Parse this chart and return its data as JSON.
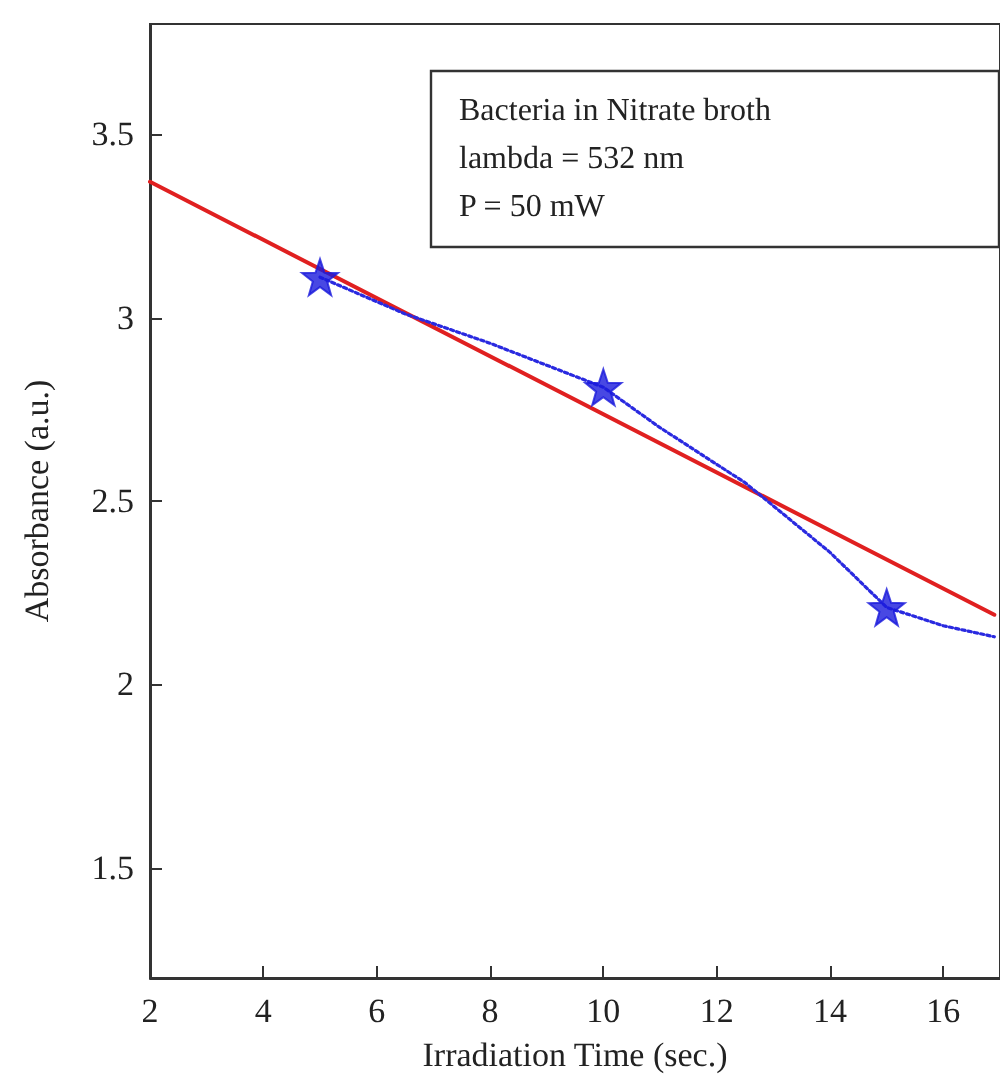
{
  "chart_data": {
    "type": "scatter",
    "xlabel": "Irradiation Time (sec.)",
    "ylabel": "Absorbance (a.u.)",
    "xlim": [
      2,
      17
    ],
    "xticks": [
      2,
      4,
      6,
      8,
      10,
      12,
      14,
      16
    ],
    "ylim": [
      1.2,
      3.8
    ],
    "yticks": [
      1.5,
      2,
      2.5,
      3,
      3.5
    ],
    "grid": false,
    "annotations": [
      "Bacteria in Nitrate broth\nlambda = 532 nm\nP = 50 mW"
    ],
    "series": [
      {
        "type": "line",
        "color": "#e02020",
        "line_style": "solid",
        "marker": "none",
        "x": [
          2,
          16.9
        ],
        "values": [
          3.37,
          2.19
        ]
      },
      {
        "type": "line",
        "color": "#2a2ae0",
        "line_style": "dotted",
        "marker": "none",
        "x": [
          5,
          6.5,
          8,
          10,
          11,
          12.5,
          14,
          15,
          16,
          16.9
        ],
        "values": [
          3.11,
          3.01,
          2.93,
          2.81,
          2.7,
          2.55,
          2.36,
          2.21,
          2.16,
          2.13
        ]
      },
      {
        "type": "scatter",
        "color": "#1a1adc",
        "marker": "star",
        "x": [
          5,
          10,
          15
        ],
        "values": [
          3.11,
          2.81,
          2.21
        ]
      }
    ]
  }
}
